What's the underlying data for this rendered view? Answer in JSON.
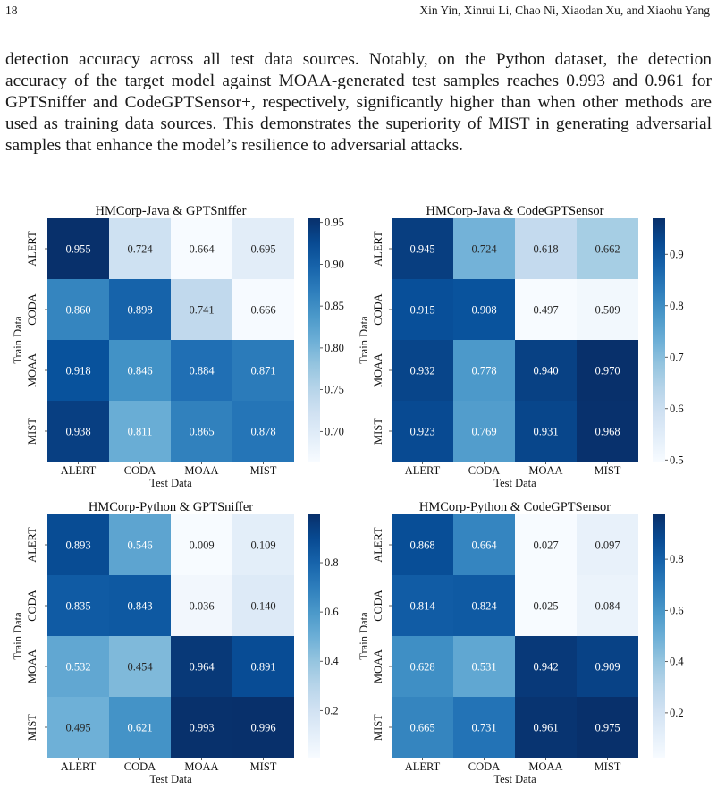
{
  "header": {
    "page_number": "18",
    "running_head": "Xin Yin, Xinrui Li, Chao Ni, Xiaodan Xu, and Xiaohu Yang"
  },
  "paragraph_lines": [
    "detection accuracy across all test data sources. Notably, on the Python dataset, the detection",
    "accuracy of the target model against MOAA-generated test samples reaches 0.993 and 0.961 for",
    "GPTSniffer and CodeGPTSensor+, respectively, significantly higher than when other methods are",
    "used as training data sources. This demonstrates the superiority of MIST in generating adversarial",
    "samples that enhance the model’s resilience to adversarial attacks."
  ],
  "chart_data": [
    {
      "type": "heatmap",
      "title": "HMCorp-Java & GPTSniffer",
      "xlabel": "Test Data",
      "ylabel": "Train Data",
      "x_categories": [
        "ALERT",
        "CODA",
        "MOAA",
        "MIST"
      ],
      "y_categories": [
        "ALERT",
        "CODA",
        "MOAA",
        "MIST"
      ],
      "values": [
        [
          0.955,
          0.724,
          0.664,
          0.695
        ],
        [
          0.86,
          0.898,
          0.741,
          0.666
        ],
        [
          0.918,
          0.846,
          0.884,
          0.871
        ],
        [
          0.938,
          0.811,
          0.865,
          0.878
        ]
      ],
      "labels": [
        [
          "0.955",
          "0.724",
          "0.664",
          "0.695"
        ],
        [
          "0.860",
          "0.898",
          "0.741",
          "0.666"
        ],
        [
          "0.918",
          "0.846",
          "0.884",
          "0.871"
        ],
        [
          "0.938",
          "0.811",
          "0.865",
          "0.878"
        ]
      ],
      "colorbar_range": [
        0.664,
        0.955
      ],
      "colorbar_ticks": [
        0.7,
        0.75,
        0.8,
        0.85,
        0.9,
        0.95
      ],
      "colorbar_tick_labels": [
        "0.70",
        "0.75",
        "0.80",
        "0.85",
        "0.90",
        "0.95"
      ],
      "colormap": "Blues"
    },
    {
      "type": "heatmap",
      "title": "HMCorp-Java & CodeGPTSensor",
      "xlabel": "Test Data",
      "ylabel": "Train Data",
      "x_categories": [
        "ALERT",
        "CODA",
        "MOAA",
        "MIST"
      ],
      "y_categories": [
        "ALERT",
        "CODA",
        "MOAA",
        "MIST"
      ],
      "values": [
        [
          0.945,
          0.724,
          0.618,
          0.662
        ],
        [
          0.915,
          0.908,
          0.497,
          0.509
        ],
        [
          0.932,
          0.778,
          0.94,
          0.97
        ],
        [
          0.923,
          0.769,
          0.931,
          0.968
        ]
      ],
      "labels": [
        [
          "0.945",
          "0.724",
          "0.618",
          "0.662"
        ],
        [
          "0.915",
          "0.908",
          "0.497",
          "0.509"
        ],
        [
          "0.932",
          "0.778",
          "0.940",
          "0.970"
        ],
        [
          "0.923",
          "0.769",
          "0.931",
          "0.968"
        ]
      ],
      "colorbar_range": [
        0.497,
        0.97
      ],
      "colorbar_ticks": [
        0.5,
        0.6,
        0.7,
        0.8,
        0.9
      ],
      "colorbar_tick_labels": [
        "0.5",
        "0.6",
        "0.7",
        "0.8",
        "0.9"
      ],
      "colormap": "Blues"
    },
    {
      "type": "heatmap",
      "title": "HMCorp-Python & GPTSniffer",
      "xlabel": "Test Data",
      "ylabel": "Train Data",
      "x_categories": [
        "ALERT",
        "CODA",
        "MOAA",
        "MIST"
      ],
      "y_categories": [
        "ALERT",
        "CODA",
        "MOAA",
        "MIST"
      ],
      "values": [
        [
          0.893,
          0.546,
          0.009,
          0.109
        ],
        [
          0.835,
          0.843,
          0.036,
          0.14
        ],
        [
          0.532,
          0.454,
          0.964,
          0.891
        ],
        [
          0.495,
          0.621,
          0.993,
          0.996
        ]
      ],
      "labels": [
        [
          "0.893",
          "0.546",
          "0.009",
          "0.109"
        ],
        [
          "0.835",
          "0.843",
          "0.036",
          "0.140"
        ],
        [
          "0.532",
          "0.454",
          "0.964",
          "0.891"
        ],
        [
          "0.495",
          "0.621",
          "0.993",
          "0.996"
        ]
      ],
      "colorbar_range": [
        0.009,
        0.996
      ],
      "colorbar_ticks": [
        0.2,
        0.4,
        0.6,
        0.8
      ],
      "colorbar_tick_labels": [
        "0.2",
        "0.4",
        "0.6",
        "0.8"
      ],
      "colormap": "Blues"
    },
    {
      "type": "heatmap",
      "title": "HMCorp-Python & CodeGPTSensor",
      "xlabel": "Test Data",
      "ylabel": "Train Data",
      "x_categories": [
        "ALERT",
        "CODA",
        "MOAA",
        "MIST"
      ],
      "y_categories": [
        "ALERT",
        "CODA",
        "MOAA",
        "MIST"
      ],
      "values": [
        [
          0.868,
          0.664,
          0.027,
          0.097
        ],
        [
          0.814,
          0.824,
          0.025,
          0.084
        ],
        [
          0.628,
          0.531,
          0.942,
          0.909
        ],
        [
          0.665,
          0.731,
          0.961,
          0.975
        ]
      ],
      "labels": [
        [
          "0.868",
          "0.664",
          "0.027",
          "0.097"
        ],
        [
          "0.814",
          "0.824",
          "0.025",
          "0.084"
        ],
        [
          "0.628",
          "0.531",
          "0.942",
          "0.909"
        ],
        [
          "0.665",
          "0.731",
          "0.961",
          "0.975"
        ]
      ],
      "colorbar_range": [
        0.025,
        0.975
      ],
      "colorbar_ticks": [
        0.2,
        0.4,
        0.6,
        0.8
      ],
      "colorbar_tick_labels": [
        "0.2",
        "0.4",
        "0.6",
        "0.8"
      ],
      "colormap": "Blues"
    }
  ]
}
